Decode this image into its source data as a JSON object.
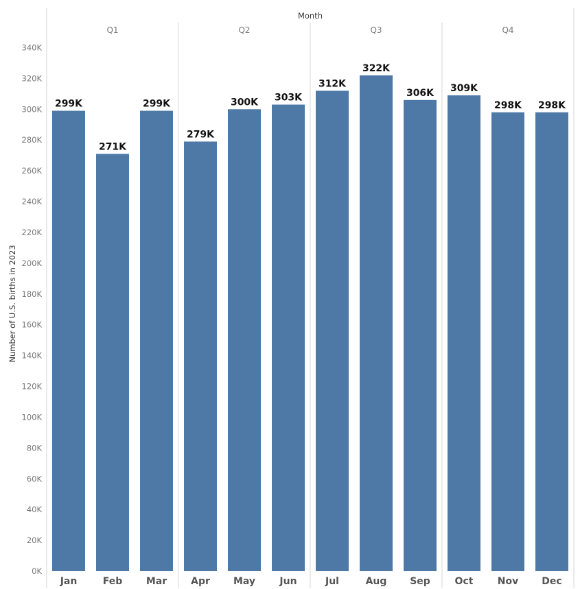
{
  "chart_data": {
    "type": "bar",
    "title": "",
    "xlabel": "Month",
    "ylabel": "Number of U.S. births in 2023",
    "groups": [
      {
        "label": "Q1",
        "categories": [
          "Jan",
          "Feb",
          "Mar"
        ]
      },
      {
        "label": "Q2",
        "categories": [
          "Apr",
          "May",
          "Jun"
        ]
      },
      {
        "label": "Q3",
        "categories": [
          "Jul",
          "Aug",
          "Sep"
        ]
      },
      {
        "label": "Q4",
        "categories": [
          "Oct",
          "Nov",
          "Dec"
        ]
      }
    ],
    "categories": [
      "Jan",
      "Feb",
      "Mar",
      "Apr",
      "May",
      "Jun",
      "Jul",
      "Aug",
      "Sep",
      "Oct",
      "Nov",
      "Dec"
    ],
    "values": [
      299000,
      271000,
      299000,
      279000,
      300000,
      303000,
      312000,
      322000,
      306000,
      309000,
      298000,
      298000
    ],
    "data_labels": [
      "299K",
      "271K",
      "299K",
      "279K",
      "300K",
      "303K",
      "312K",
      "322K",
      "306K",
      "309K",
      "298K",
      "298K"
    ],
    "ylim": [
      0,
      350000
    ],
    "yticks": [
      0,
      20000,
      40000,
      60000,
      80000,
      100000,
      120000,
      140000,
      160000,
      180000,
      200000,
      220000,
      240000,
      260000,
      280000,
      300000,
      320000,
      340000
    ],
    "ytick_labels": [
      "0K",
      "20K",
      "40K",
      "60K",
      "80K",
      "100K",
      "120K",
      "140K",
      "160K",
      "180K",
      "200K",
      "220K",
      "240K",
      "260K",
      "280K",
      "300K",
      "320K",
      "340K"
    ],
    "grid": false,
    "legend": "none",
    "colors": {
      "bar": "#4e79a7",
      "divider": "#d4d4d4"
    }
  }
}
